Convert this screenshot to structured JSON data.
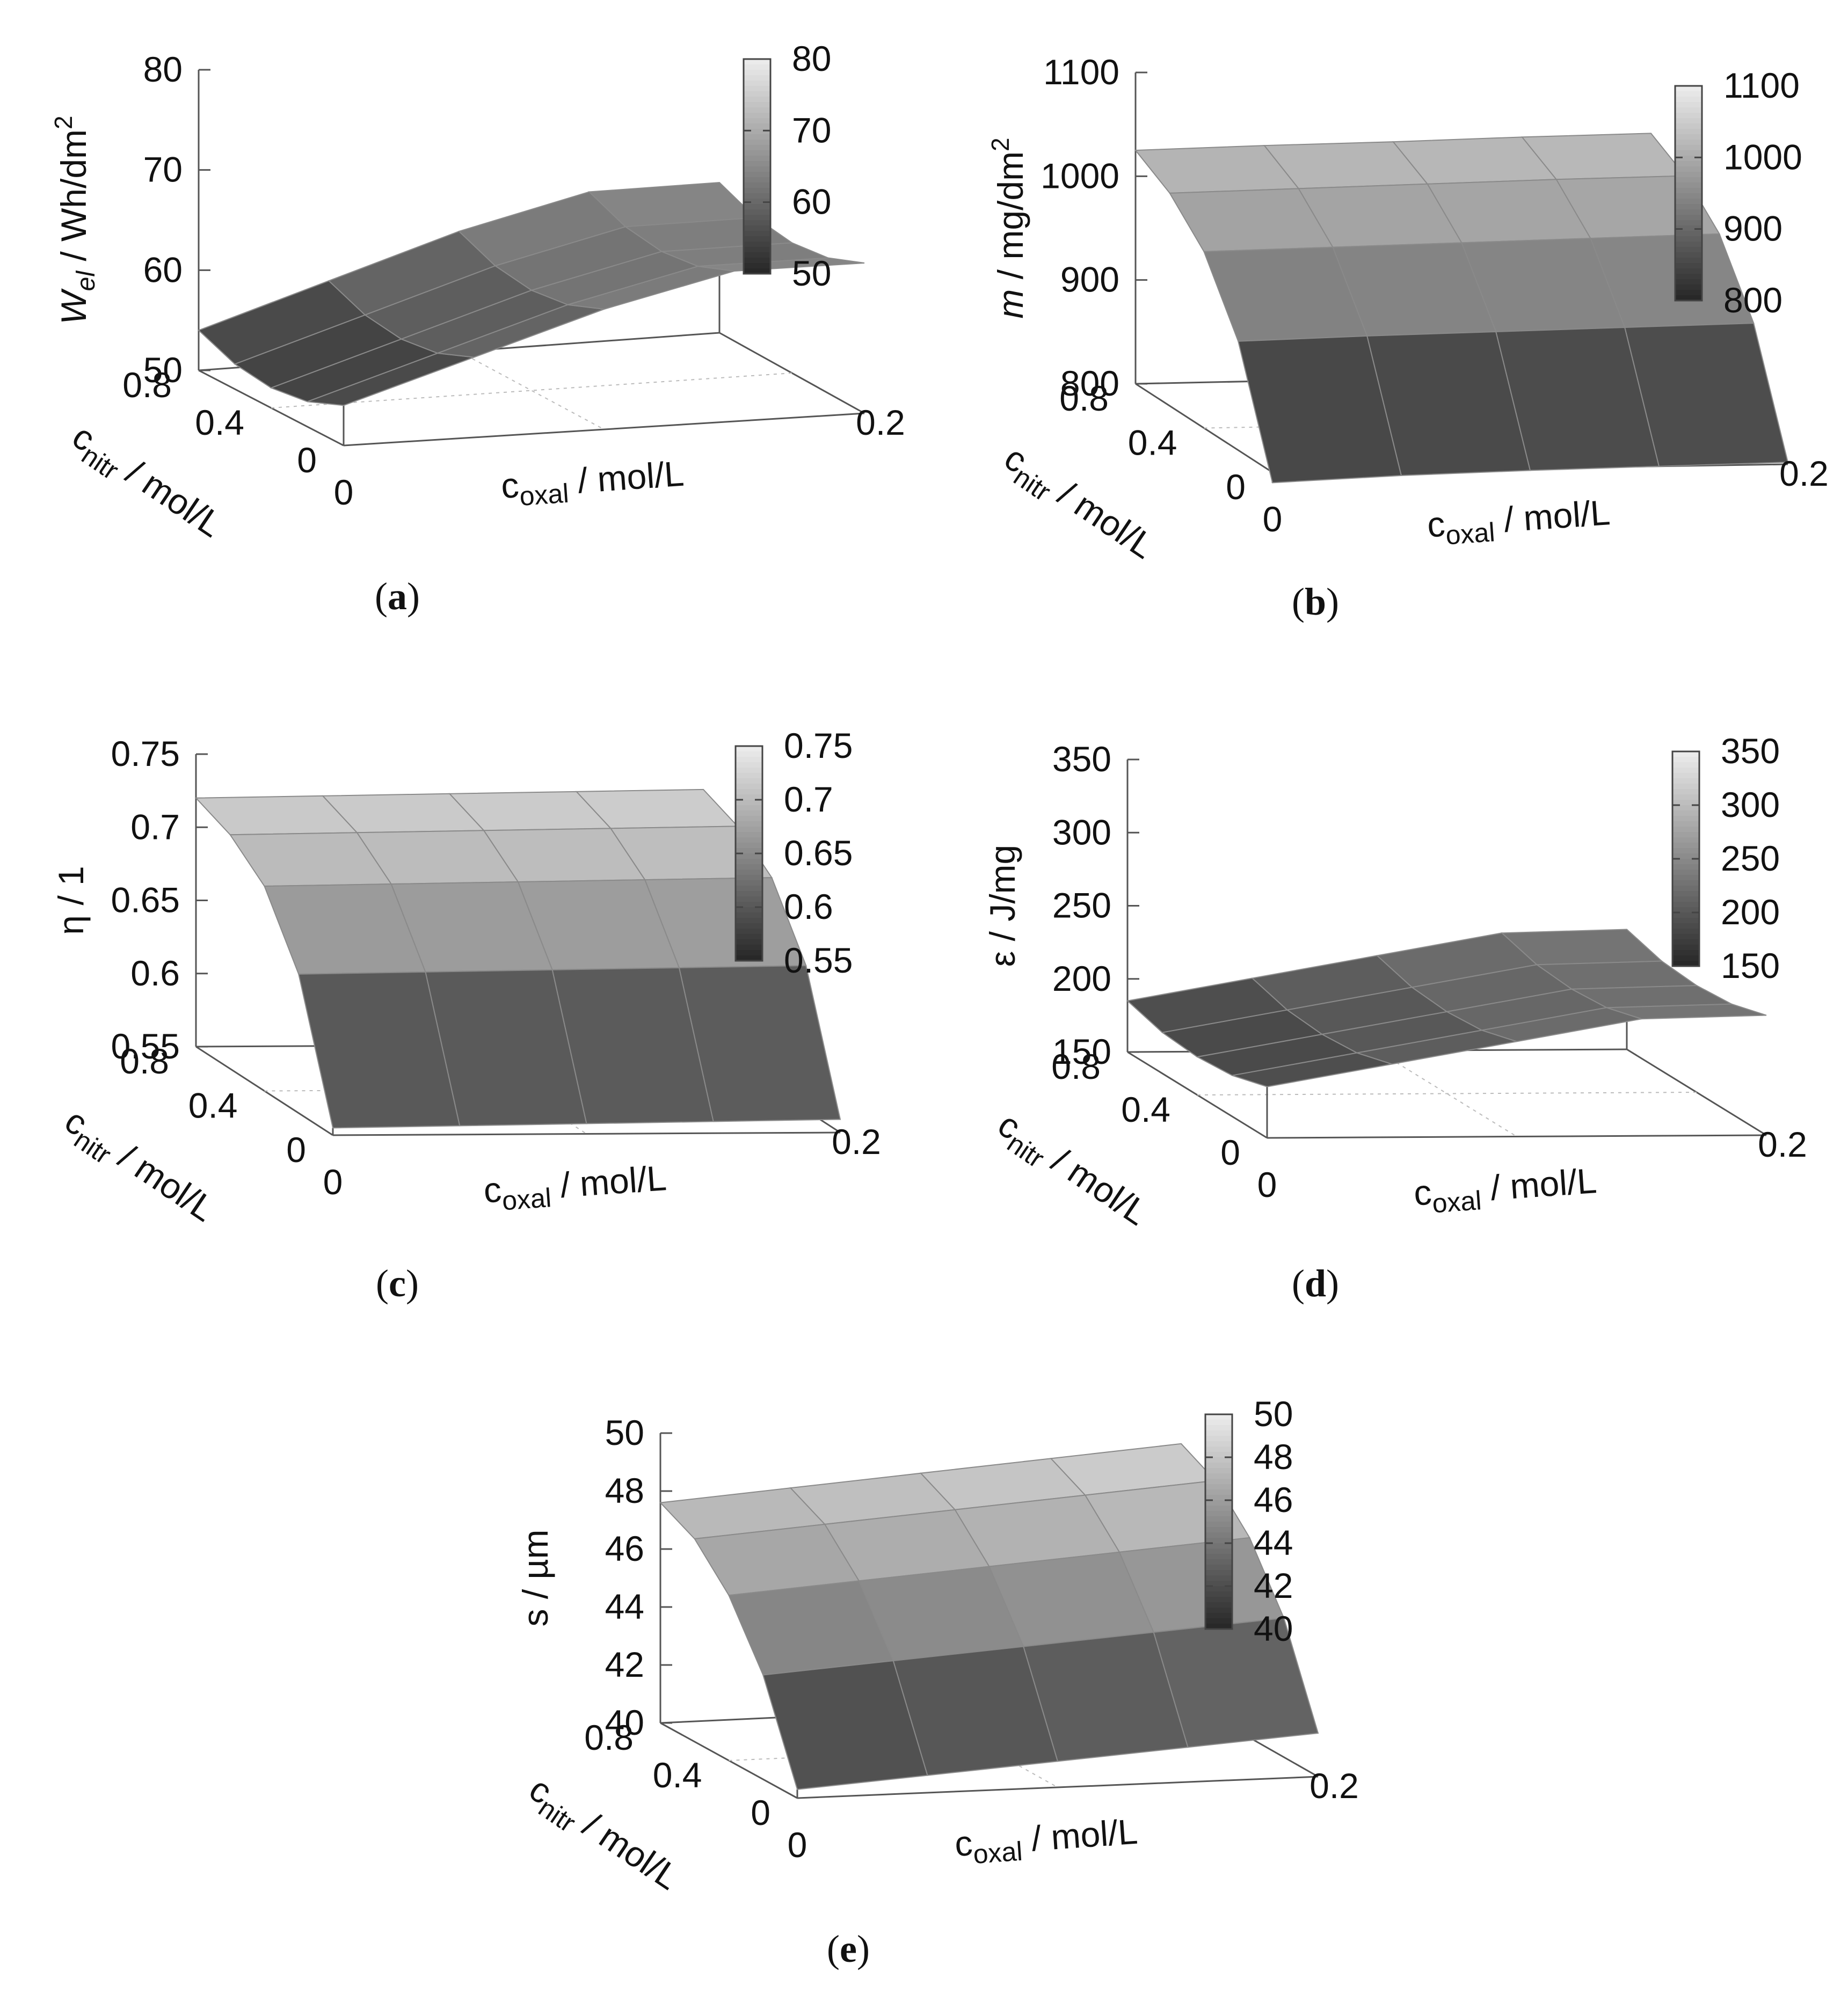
{
  "chart_data": [
    {
      "id": "a",
      "type": "surface3d",
      "caption_letter": "a",
      "zlabel_parts": [
        "W",
        "el",
        " / Wh/dm",
        "2"
      ],
      "zlim": [
        50,
        80
      ],
      "zticks": [
        "50",
        "60",
        "70",
        "80"
      ],
      "colorbar_ticks": [
        "50",
        "60",
        "70",
        "80"
      ],
      "x_axis": {
        "label": "c",
        "label_sub": "oxal",
        "label_rest": " / mol/L",
        "range": [
          0,
          0.2
        ],
        "ticks": [
          "0",
          "0.2"
        ]
      },
      "y_axis": {
        "label": "c",
        "label_sub": "nitr",
        "label_rest": " / mol/L",
        "range": [
          0,
          0.8
        ],
        "ticks": [
          "0",
          "0.4",
          "0.8"
        ]
      },
      "x": [
        0,
        0.05,
        0.1,
        0.15,
        0.2
      ],
      "y": [
        0,
        0.2,
        0.4,
        0.6,
        0.8
      ],
      "z": [
        [
          54,
          58,
          62,
          65,
          65
        ],
        [
          52.5,
          56.5,
          60.5,
          63.5,
          63.5
        ],
        [
          52,
          56,
          60,
          63,
          63
        ],
        [
          52.5,
          56.5,
          60.5,
          63.5,
          63.5
        ],
        [
          54,
          58,
          62,
          65,
          65
        ]
      ]
    },
    {
      "id": "b",
      "type": "surface3d",
      "caption_letter": "b",
      "zlabel_parts": [
        "m",
        "",
        " / mg/dm",
        "2"
      ],
      "zlim": [
        800,
        1100
      ],
      "zticks": [
        "800",
        "900",
        "1000",
        "1100"
      ],
      "colorbar_ticks": [
        "800",
        "900",
        "1000",
        "1100"
      ],
      "x_axis": {
        "label": "c",
        "label_sub": "oxal",
        "label_rest": " / mol/L",
        "range": [
          0,
          0.2
        ],
        "ticks": [
          "0",
          "0.2"
        ]
      },
      "y_axis": {
        "label": "c",
        "label_sub": "nitr",
        "label_rest": " / mol/L",
        "range": [
          0,
          0.8
        ],
        "ticks": [
          "0",
          "0.4",
          "0.8"
        ]
      },
      "x": [
        0,
        0.05,
        0.1,
        0.15,
        0.2
      ],
      "y": [
        0,
        0.2,
        0.4,
        0.6,
        0.8
      ],
      "z": [
        [
          790,
          795,
          798,
          800,
          802
        ],
        [
          905,
          908,
          910,
          912,
          914
        ],
        [
          970,
          972,
          974,
          976,
          978
        ],
        [
          1005,
          1007,
          1009,
          1011,
          1012
        ],
        [
          1025,
          1027,
          1028,
          1030,
          1031
        ]
      ]
    },
    {
      "id": "c",
      "type": "surface3d",
      "caption_letter": "c",
      "zlabel_parts": [
        "η / 1",
        "",
        "",
        ""
      ],
      "zlim": [
        0.55,
        0.75
      ],
      "zticks": [
        "0.55",
        "0.6",
        "0.65",
        "0.7",
        "0.75"
      ],
      "colorbar_ticks": [
        "0.55",
        "0.6",
        "0.65",
        "0.7",
        "0.75"
      ],
      "x_axis": {
        "label": "c",
        "label_sub": "oxal",
        "label_rest": " / mol/L",
        "range": [
          0,
          0.2
        ],
        "ticks": [
          "0",
          "0.2"
        ]
      },
      "y_axis": {
        "label": "c",
        "label_sub": "nitr",
        "label_rest": " / mol/L",
        "range": [
          0,
          0.8
        ],
        "ticks": [
          "0",
          "0.4",
          "0.8"
        ]
      },
      "x": [
        0,
        0.05,
        0.1,
        0.15,
        0.2
      ],
      "y": [
        0,
        0.2,
        0.4,
        0.6,
        0.8
      ],
      "z": [
        [
          0.555,
          0.556,
          0.557,
          0.558,
          0.559
        ],
        [
          0.645,
          0.646,
          0.647,
          0.648,
          0.649
        ],
        [
          0.69,
          0.691,
          0.692,
          0.693,
          0.694
        ],
        [
          0.71,
          0.711,
          0.712,
          0.713,
          0.714
        ],
        [
          0.72,
          0.721,
          0.722,
          0.723,
          0.724
        ]
      ]
    },
    {
      "id": "d",
      "type": "surface3d",
      "caption_letter": "d",
      "zlabel_parts": [
        "ε / J/mg",
        "",
        "",
        ""
      ],
      "zlim": [
        150,
        350
      ],
      "zticks": [
        "150",
        "200",
        "250",
        "300",
        "350"
      ],
      "colorbar_ticks": [
        "150",
        "200",
        "250",
        "300",
        "350"
      ],
      "x_axis": {
        "label": "c",
        "label_sub": "oxal",
        "label_rest": " / mol/L",
        "range": [
          0,
          0.2
        ],
        "ticks": [
          "0",
          "0.2"
        ]
      },
      "y_axis": {
        "label": "c",
        "label_sub": "nitr",
        "label_rest": " / mol/L",
        "range": [
          0,
          0.8
        ],
        "ticks": [
          "0",
          "0.4",
          "0.8"
        ]
      },
      "x": [
        0,
        0.05,
        0.1,
        0.15,
        0.2
      ],
      "y": [
        0,
        0.2,
        0.4,
        0.6,
        0.8
      ],
      "z": [
        [
          185,
          200,
          215,
          230,
          232
        ],
        [
          178,
          193,
          208,
          223,
          225
        ],
        [
          176,
          191,
          206,
          221,
          223
        ],
        [
          178,
          193,
          208,
          223,
          225
        ],
        [
          185,
          200,
          215,
          230,
          232
        ]
      ]
    },
    {
      "id": "e",
      "type": "surface3d",
      "caption_letter": "e",
      "zlabel_parts": [
        "s / µm",
        "",
        "",
        ""
      ],
      "zlim": [
        40,
        50
      ],
      "zticks": [
        "40",
        "42",
        "44",
        "46",
        "48",
        "50"
      ],
      "colorbar_ticks": [
        "40",
        "42",
        "44",
        "46",
        "48",
        "50"
      ],
      "x_axis": {
        "label": "c",
        "label_sub": "oxal",
        "label_rest": " / mol/L",
        "range": [
          0,
          0.2
        ],
        "ticks": [
          "0",
          "0.2"
        ]
      },
      "y_axis": {
        "label": "c",
        "label_sub": "nitr",
        "label_rest": " / mol/L",
        "range": [
          0,
          0.8
        ],
        "ticks": [
          "0",
          "0.4",
          "0.8"
        ]
      },
      "x": [
        0,
        0.05,
        0.1,
        0.15,
        0.2
      ],
      "y": [
        0,
        0.2,
        0.4,
        0.6,
        0.8
      ],
      "z": [
        [
          40.3,
          40.6,
          40.9,
          41.2,
          41.5
        ],
        [
          43.6,
          43.9,
          44.2,
          44.5,
          44.8
        ],
        [
          45.7,
          46.0,
          46.3,
          46.6,
          46.9
        ],
        [
          47.0,
          47.3,
          47.6,
          47.9,
          48.2
        ],
        [
          47.6,
          47.9,
          48.2,
          48.5,
          48.8
        ]
      ]
    }
  ]
}
